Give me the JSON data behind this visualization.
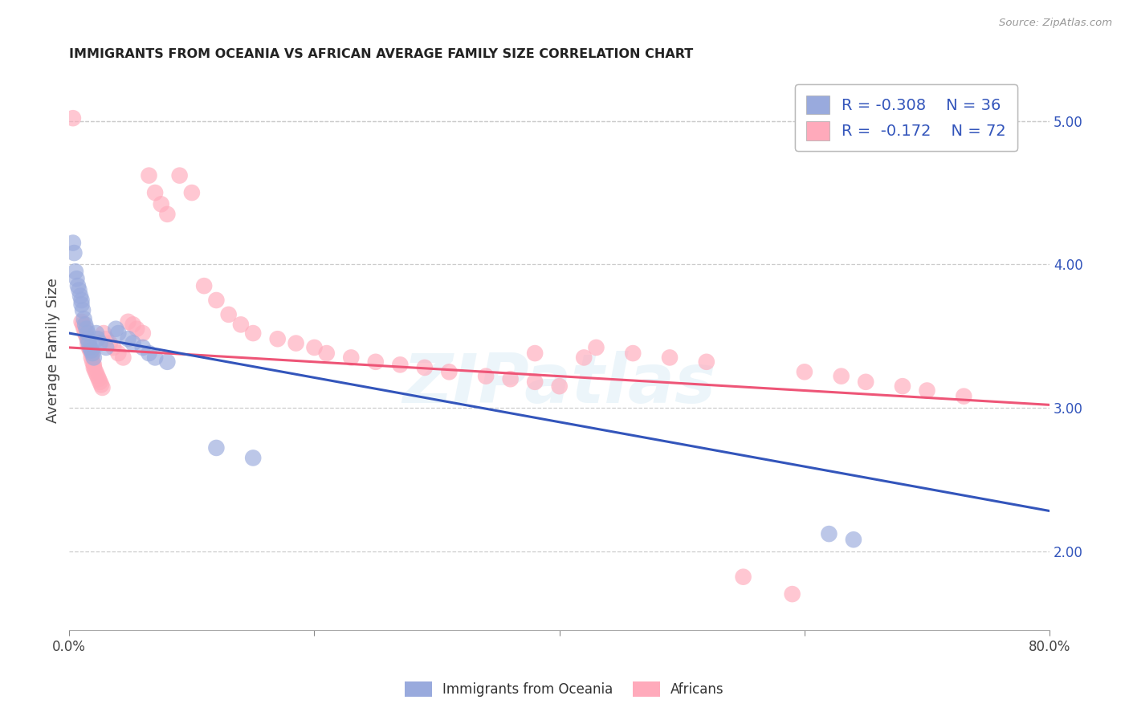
{
  "title": "IMMIGRANTS FROM OCEANIA VS AFRICAN AVERAGE FAMILY SIZE CORRELATION CHART",
  "source": "Source: ZipAtlas.com",
  "ylabel": "Average Family Size",
  "right_ytick_vals": [
    2.0,
    3.0,
    4.0,
    5.0
  ],
  "right_ytick_labels": [
    "2.00",
    "3.00",
    "4.00",
    "5.00"
  ],
  "legend_blue_label": "Immigrants from Oceania",
  "legend_pink_label": "Africans",
  "blue_color": "#99AADD",
  "pink_color": "#FFAABB",
  "blue_line_color": "#3355BB",
  "pink_line_color": "#EE5577",
  "blue_line": [
    0.0,
    3.52,
    0.8,
    2.28
  ],
  "pink_line": [
    0.0,
    3.42,
    0.8,
    3.02
  ],
  "watermark": "ZIPatlas",
  "xlim": [
    0.0,
    0.8
  ],
  "ylim": [
    1.45,
    5.35
  ],
  "blue_points": [
    [
      0.003,
      4.15
    ],
    [
      0.004,
      4.08
    ],
    [
      0.005,
      3.95
    ],
    [
      0.006,
      3.9
    ],
    [
      0.007,
      3.85
    ],
    [
      0.008,
      3.82
    ],
    [
      0.009,
      3.78
    ],
    [
      0.01,
      3.75
    ],
    [
      0.01,
      3.72
    ],
    [
      0.011,
      3.68
    ],
    [
      0.012,
      3.62
    ],
    [
      0.013,
      3.58
    ],
    [
      0.014,
      3.55
    ],
    [
      0.015,
      3.52
    ],
    [
      0.015,
      3.48
    ],
    [
      0.016,
      3.45
    ],
    [
      0.017,
      3.42
    ],
    [
      0.018,
      3.4
    ],
    [
      0.019,
      3.38
    ],
    [
      0.02,
      3.35
    ],
    [
      0.022,
      3.52
    ],
    [
      0.023,
      3.48
    ],
    [
      0.025,
      3.45
    ],
    [
      0.03,
      3.42
    ],
    [
      0.038,
      3.55
    ],
    [
      0.04,
      3.52
    ],
    [
      0.048,
      3.48
    ],
    [
      0.052,
      3.45
    ],
    [
      0.06,
      3.42
    ],
    [
      0.065,
      3.38
    ],
    [
      0.07,
      3.35
    ],
    [
      0.08,
      3.32
    ],
    [
      0.12,
      2.72
    ],
    [
      0.15,
      2.65
    ],
    [
      0.62,
      2.12
    ],
    [
      0.64,
      2.08
    ]
  ],
  "pink_points": [
    [
      0.003,
      5.02
    ],
    [
      0.01,
      3.6
    ],
    [
      0.011,
      3.58
    ],
    [
      0.012,
      3.55
    ],
    [
      0.013,
      3.52
    ],
    [
      0.014,
      3.5
    ],
    [
      0.015,
      3.48
    ],
    [
      0.015,
      3.45
    ],
    [
      0.016,
      3.42
    ],
    [
      0.017,
      3.4
    ],
    [
      0.018,
      3.38
    ],
    [
      0.018,
      3.35
    ],
    [
      0.019,
      3.32
    ],
    [
      0.02,
      3.3
    ],
    [
      0.02,
      3.28
    ],
    [
      0.021,
      3.26
    ],
    [
      0.022,
      3.24
    ],
    [
      0.023,
      3.22
    ],
    [
      0.024,
      3.2
    ],
    [
      0.025,
      3.18
    ],
    [
      0.026,
      3.16
    ],
    [
      0.027,
      3.14
    ],
    [
      0.028,
      3.52
    ],
    [
      0.03,
      3.48
    ],
    [
      0.033,
      3.45
    ],
    [
      0.036,
      3.42
    ],
    [
      0.04,
      3.38
    ],
    [
      0.044,
      3.35
    ],
    [
      0.048,
      3.6
    ],
    [
      0.052,
      3.58
    ],
    [
      0.055,
      3.55
    ],
    [
      0.06,
      3.52
    ],
    [
      0.065,
      4.62
    ],
    [
      0.07,
      4.5
    ],
    [
      0.075,
      4.42
    ],
    [
      0.08,
      4.35
    ],
    [
      0.09,
      4.62
    ],
    [
      0.1,
      4.5
    ],
    [
      0.11,
      3.85
    ],
    [
      0.12,
      3.75
    ],
    [
      0.13,
      3.65
    ],
    [
      0.14,
      3.58
    ],
    [
      0.15,
      3.52
    ],
    [
      0.17,
      3.48
    ],
    [
      0.185,
      3.45
    ],
    [
      0.2,
      3.42
    ],
    [
      0.21,
      3.38
    ],
    [
      0.23,
      3.35
    ],
    [
      0.25,
      3.32
    ],
    [
      0.27,
      3.3
    ],
    [
      0.29,
      3.28
    ],
    [
      0.31,
      3.25
    ],
    [
      0.34,
      3.22
    ],
    [
      0.36,
      3.2
    ],
    [
      0.38,
      3.18
    ],
    [
      0.4,
      3.15
    ],
    [
      0.43,
      3.42
    ],
    [
      0.46,
      3.38
    ],
    [
      0.49,
      3.35
    ],
    [
      0.52,
      3.32
    ],
    [
      0.38,
      3.38
    ],
    [
      0.42,
      3.35
    ],
    [
      0.55,
      1.82
    ],
    [
      0.59,
      1.7
    ],
    [
      0.6,
      3.25
    ],
    [
      0.63,
      3.22
    ],
    [
      0.65,
      3.18
    ],
    [
      0.68,
      3.15
    ],
    [
      0.7,
      3.12
    ],
    [
      0.73,
      3.08
    ]
  ]
}
